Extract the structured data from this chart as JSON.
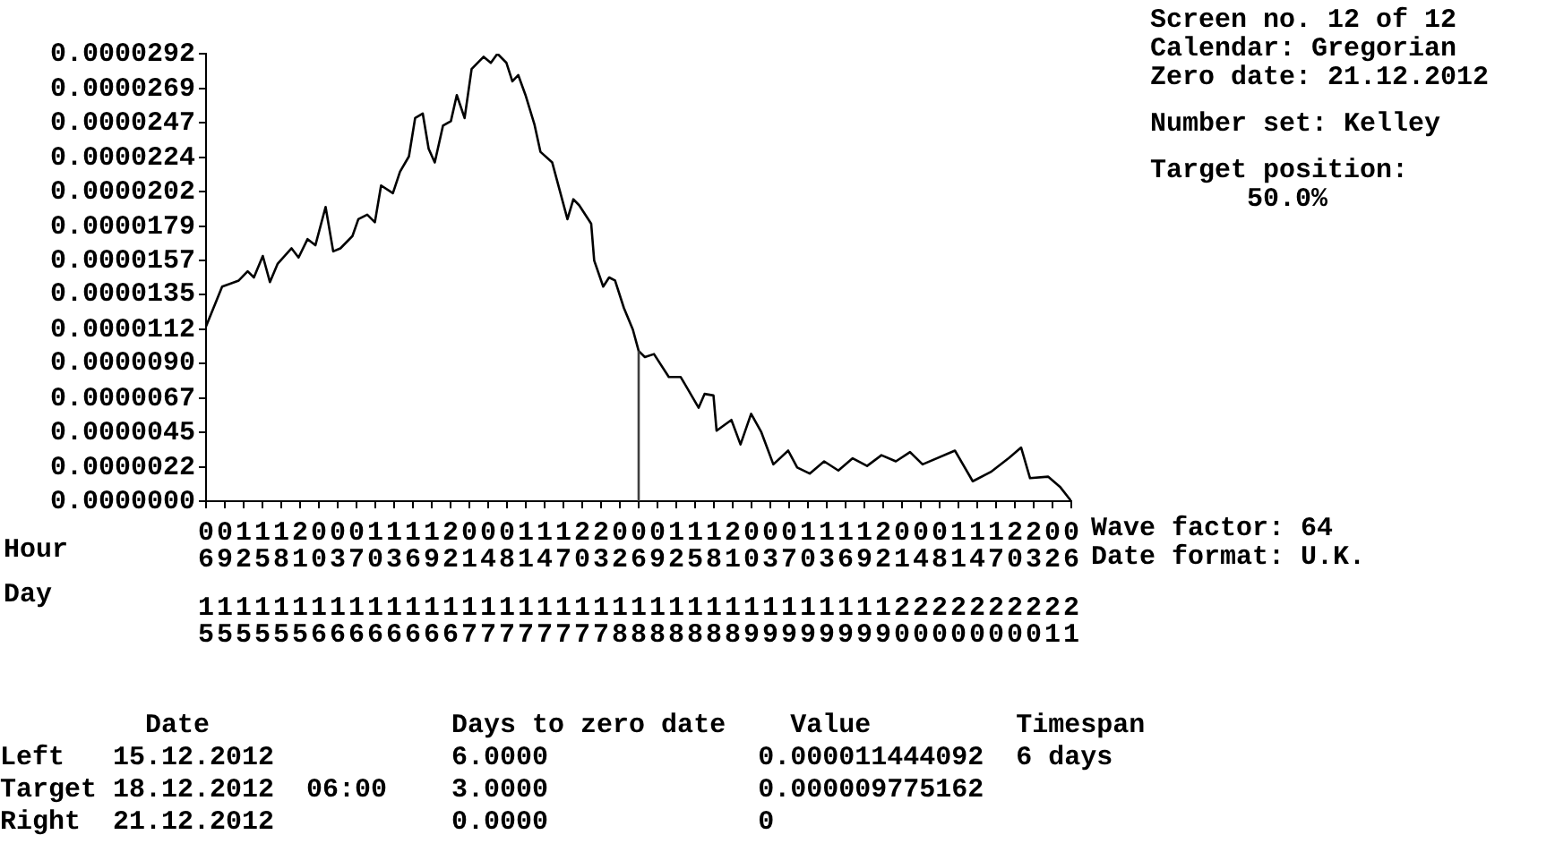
{
  "chart_data": {
    "type": "line",
    "color": "#000000",
    "marker": "none",
    "legend": false,
    "x": [
      "2012-12-15T06:00",
      "2012-12-15T08:41",
      "2012-12-15T11:27",
      "2012-12-15T12:56",
      "2012-12-15T13:58",
      "2012-12-15T15:27",
      "2012-12-15T16:38",
      "2012-12-15T17:56",
      "2012-12-15T20:14",
      "2012-12-15T21:24",
      "2012-12-15T22:54",
      "2012-12-16T00:12",
      "2012-12-16T01:54",
      "2012-12-16T03:10",
      "2012-12-16T04:22",
      "2012-12-16T06:22",
      "2012-12-16T07:21",
      "2012-12-16T08:50",
      "2012-12-16T10:06",
      "2012-12-16T11:08",
      "2012-12-16T13:06",
      "2012-12-16T14:17",
      "2012-12-16T15:46",
      "2012-12-16T16:48",
      "2012-12-16T18:04",
      "2012-12-16T19:03",
      "2012-12-16T20:04",
      "2012-12-16T21:26",
      "2012-12-16T22:45",
      "2012-12-16T23:44",
      "2012-12-17T01:02",
      "2012-12-17T02:12",
      "2012-12-17T04:12",
      "2012-12-17T05:24",
      "2012-12-17T06:30",
      "2012-12-17T08:00",
      "2012-12-17T08:59",
      "2012-12-17T09:58",
      "2012-12-17T11:10",
      "2012-12-17T12:39",
      "2012-12-17T13:39",
      "2012-12-17T15:37",
      "2012-12-17T18:09",
      "2012-12-17T19:08",
      "2012-12-17T20:07",
      "2012-12-17T22:06",
      "2012-12-17T22:36",
      "2012-12-18T00:06",
      "2012-12-18T01:05",
      "2012-12-18T02:04",
      "2012-12-18T03:33",
      "2012-12-18T05:02",
      "2012-12-18T06:00",
      "2012-12-18T07:02",
      "2012-12-18T08:33",
      "2012-12-18T11:01",
      "2012-12-18T13:00",
      "2012-12-18T15:59",
      "2012-12-18T16:58",
      "2012-12-18T18:27",
      "2012-12-18T18:58",
      "2012-12-18T21:26",
      "2012-12-18T22:57",
      "2012-12-19T00:43",
      "2012-12-19T02:25",
      "2012-12-19T04:25",
      "2012-12-19T06:53",
      "2012-12-19T08:23",
      "2012-12-19T10:28",
      "2012-12-19T12:52",
      "2012-12-19T15:14",
      "2012-12-19T17:37",
      "2012-12-19T20:01",
      "2012-12-19T22:24",
      "2012-12-20T00:48",
      "2012-12-20T03:10",
      "2012-12-20T05:15",
      "2012-12-20T10:38",
      "2012-12-20T13:36",
      "2012-12-20T16:35",
      "2012-12-20T19:34",
      "2012-12-20T21:39",
      "2012-12-20T23:08",
      "2012-12-21T02:08",
      "2012-12-21T04:12",
      "2012-12-21T06:00"
    ],
    "values": [
      1.14e-05,
      1.4e-05,
      1.44e-05,
      1.5e-05,
      1.46e-05,
      1.6e-05,
      1.43e-05,
      1.55e-05,
      1.65e-05,
      1.59e-05,
      1.71e-05,
      1.67e-05,
      1.92e-05,
      1.63e-05,
      1.65e-05,
      1.73e-05,
      1.84e-05,
      1.87e-05,
      1.82e-05,
      2.06e-05,
      2.01e-05,
      2.15e-05,
      2.25e-05,
      2.5e-05,
      2.53e-05,
      2.3e-05,
      2.21e-05,
      2.45e-05,
      2.48e-05,
      2.65e-05,
      2.5e-05,
      2.82e-05,
      2.9e-05,
      2.86e-05,
      2.92e-05,
      2.86e-05,
      2.74e-05,
      2.78e-05,
      2.65e-05,
      2.46e-05,
      2.28e-05,
      2.21e-05,
      1.84e-05,
      1.97e-05,
      1.93e-05,
      1.81e-05,
      1.57e-05,
      1.4e-05,
      1.46e-05,
      1.44e-05,
      1.26e-05,
      1.12e-05,
      9.8e-06,
      9.4e-06,
      9.6e-06,
      8.1e-06,
      8.1e-06,
      6.1e-06,
      7e-06,
      6.9e-06,
      4.6e-06,
      5.3e-06,
      3.7e-06,
      5.7e-06,
      4.5e-06,
      2.4e-06,
      3.3e-06,
      2.2e-06,
      1.8e-06,
      2.6e-06,
      2e-06,
      2.8e-06,
      2.3e-06,
      3e-06,
      2.6e-06,
      3.2e-06,
      2.4e-06,
      3.3e-06,
      1.3e-06,
      1.9e-06,
      2.8e-06,
      3.5e-06,
      1.5e-06,
      1.6e-06,
      9e-07,
      0
    ],
    "xlim": [
      "2012-12-15T06:00",
      "2012-12-21T06:00"
    ],
    "xlabel": "Hour",
    "xticks": [
      {
        "value": "2012-12-15T06:00",
        "label": "06"
      },
      {
        "value": "2012-12-15T09:08",
        "label": "09"
      },
      {
        "value": "2012-12-15T12:16",
        "label": "12"
      },
      {
        "value": "2012-12-15T15:24",
        "label": "15"
      },
      {
        "value": "2012-12-15T18:31",
        "label": "18"
      },
      {
        "value": "2012-12-15T21:39",
        "label": "21"
      },
      {
        "value": "2012-12-16T00:47",
        "label": "00"
      },
      {
        "value": "2012-12-16T03:55",
        "label": "03"
      },
      {
        "value": "2012-12-16T07:03",
        "label": "07"
      },
      {
        "value": "2012-12-16T10:10",
        "label": "10"
      },
      {
        "value": "2012-12-16T13:18",
        "label": "13"
      },
      {
        "value": "2012-12-16T16:26",
        "label": "16"
      },
      {
        "value": "2012-12-16T19:34",
        "label": "19"
      },
      {
        "value": "2012-12-16T22:42",
        "label": "22"
      },
      {
        "value": "2012-12-17T01:50",
        "label": "01"
      },
      {
        "value": "2012-12-17T04:57",
        "label": "04"
      },
      {
        "value": "2012-12-17T08:05",
        "label": "08"
      },
      {
        "value": "2012-12-17T11:13",
        "label": "11"
      },
      {
        "value": "2012-12-17T14:21",
        "label": "14"
      },
      {
        "value": "2012-12-17T17:29",
        "label": "17"
      },
      {
        "value": "2012-12-17T20:37",
        "label": "20"
      },
      {
        "value": "2012-12-17T23:44",
        "label": "23"
      },
      {
        "value": "2012-12-18T02:52",
        "label": "02"
      },
      {
        "value": "2012-12-18T06:00",
        "label": "06"
      },
      {
        "value": "2012-12-18T09:08",
        "label": "09"
      },
      {
        "value": "2012-12-18T12:16",
        "label": "12"
      },
      {
        "value": "2012-12-18T15:24",
        "label": "15"
      },
      {
        "value": "2012-12-18T18:31",
        "label": "18"
      },
      {
        "value": "2012-12-18T21:39",
        "label": "21"
      },
      {
        "value": "2012-12-19T00:47",
        "label": "00"
      },
      {
        "value": "2012-12-19T03:55",
        "label": "03"
      },
      {
        "value": "2012-12-19T07:03",
        "label": "07"
      },
      {
        "value": "2012-12-19T10:10",
        "label": "10"
      },
      {
        "value": "2012-12-19T13:18",
        "label": "13"
      },
      {
        "value": "2012-12-19T16:26",
        "label": "16"
      },
      {
        "value": "2012-12-19T19:34",
        "label": "19"
      },
      {
        "value": "2012-12-19T22:42",
        "label": "22"
      },
      {
        "value": "2012-12-20T01:50",
        "label": "01"
      },
      {
        "value": "2012-12-20T04:57",
        "label": "04"
      },
      {
        "value": "2012-12-20T08:05",
        "label": "08"
      },
      {
        "value": "2012-12-20T11:13",
        "label": "11"
      },
      {
        "value": "2012-12-20T14:21",
        "label": "14"
      },
      {
        "value": "2012-12-20T17:29",
        "label": "17"
      },
      {
        "value": "2012-12-20T20:37",
        "label": "20"
      },
      {
        "value": "2012-12-20T23:44",
        "label": "23"
      },
      {
        "value": "2012-12-21T02:52",
        "label": "02"
      },
      {
        "value": "2012-12-21T06:00",
        "label": "06"
      }
    ],
    "x2lim": [
      "2012-12-15T06:00",
      "2012-12-21T06:00"
    ],
    "x2label": "Day",
    "x2ticks": [
      {
        "value": "2012-12-15T06:00",
        "label": "15"
      },
      {
        "value": "2012-12-15T09:08",
        "label": "15"
      },
      {
        "value": "2012-12-15T12:16",
        "label": "15"
      },
      {
        "value": "2012-12-15T15:24",
        "label": "15"
      },
      {
        "value": "2012-12-15T18:31",
        "label": "15"
      },
      {
        "value": "2012-12-15T21:39",
        "label": "15"
      },
      {
        "value": "2012-12-16T00:47",
        "label": "16"
      },
      {
        "value": "2012-12-16T03:55",
        "label": "16"
      },
      {
        "value": "2012-12-16T07:03",
        "label": "16"
      },
      {
        "value": "2012-12-16T10:10",
        "label": "16"
      },
      {
        "value": "2012-12-16T13:18",
        "label": "16"
      },
      {
        "value": "2012-12-16T16:26",
        "label": "16"
      },
      {
        "value": "2012-12-16T19:34",
        "label": "16"
      },
      {
        "value": "2012-12-16T22:42",
        "label": "16"
      },
      {
        "value": "2012-12-17T01:50",
        "label": "17"
      },
      {
        "value": "2012-12-17T04:57",
        "label": "17"
      },
      {
        "value": "2012-12-17T08:05",
        "label": "17"
      },
      {
        "value": "2012-12-17T11:13",
        "label": "17"
      },
      {
        "value": "2012-12-17T14:21",
        "label": "17"
      },
      {
        "value": "2012-12-17T17:29",
        "label": "17"
      },
      {
        "value": "2012-12-17T20:37",
        "label": "17"
      },
      {
        "value": "2012-12-17T23:44",
        "label": "17"
      },
      {
        "value": "2012-12-18T02:52",
        "label": "18"
      },
      {
        "value": "2012-12-18T06:00",
        "label": "18"
      },
      {
        "value": "2012-12-18T09:08",
        "label": "18"
      },
      {
        "value": "2012-12-18T12:16",
        "label": "18"
      },
      {
        "value": "2012-12-18T15:24",
        "label": "18"
      },
      {
        "value": "2012-12-18T18:31",
        "label": "18"
      },
      {
        "value": "2012-12-18T21:39",
        "label": "18"
      },
      {
        "value": "2012-12-19T00:47",
        "label": "19"
      },
      {
        "value": "2012-12-19T03:55",
        "label": "19"
      },
      {
        "value": "2012-12-19T07:03",
        "label": "19"
      },
      {
        "value": "2012-12-19T10:10",
        "label": "19"
      },
      {
        "value": "2012-12-19T13:18",
        "label": "19"
      },
      {
        "value": "2012-12-19T16:26",
        "label": "19"
      },
      {
        "value": "2012-12-19T19:34",
        "label": "19"
      },
      {
        "value": "2012-12-19T22:42",
        "label": "19"
      },
      {
        "value": "2012-12-20T01:50",
        "label": "20"
      },
      {
        "value": "2012-12-20T04:57",
        "label": "20"
      },
      {
        "value": "2012-12-20T08:05",
        "label": "20"
      },
      {
        "value": "2012-12-20T11:13",
        "label": "20"
      },
      {
        "value": "2012-12-20T14:21",
        "label": "20"
      },
      {
        "value": "2012-12-20T17:29",
        "label": "20"
      },
      {
        "value": "2012-12-20T20:37",
        "label": "20"
      },
      {
        "value": "2012-12-20T23:44",
        "label": "20"
      },
      {
        "value": "2012-12-21T02:52",
        "label": "21"
      },
      {
        "value": "2012-12-21T06:00",
        "label": "21"
      }
    ],
    "ylim": [
      0,
      2.92e-05
    ],
    "yticks": [
      {
        "value": 0,
        "label": "0.0000000"
      },
      {
        "value": 2.2e-06,
        "label": "0.0000022"
      },
      {
        "value": 4.5e-06,
        "label": "0.0000045"
      },
      {
        "value": 6.7e-06,
        "label": "0.0000067"
      },
      {
        "value": 9e-06,
        "label": "0.0000090"
      },
      {
        "value": 1.12e-05,
        "label": "0.0000112"
      },
      {
        "value": 1.35e-05,
        "label": "0.0000135"
      },
      {
        "value": 1.57e-05,
        "label": "0.0000157"
      },
      {
        "value": 1.79e-05,
        "label": "0.0000179"
      },
      {
        "value": 2.02e-05,
        "label": "0.0000202"
      },
      {
        "value": 2.24e-05,
        "label": "0.0000224"
      },
      {
        "value": 2.47e-05,
        "label": "0.0000247"
      },
      {
        "value": 2.69e-05,
        "label": "0.0000269"
      },
      {
        "value": 2.92e-05,
        "label": "0.0000292"
      }
    ],
    "ref_lines": [
      {
        "axis": "x",
        "value": "2012-12-18T06:00",
        "color": "#404040"
      }
    ],
    "annotations": [
      "Screen no. 12 of 12",
      "Calendar: Gregorian",
      "Zero date: 21.12.2012",
      "Number set: Kelley",
      "Target position:",
      "50.0%",
      "Wave factor: 64",
      "Date format: U.K.",
      "         Date               Days to zero date    Value         Timespan",
      "Left   15.12.2012           6.0000             0.000011444092  6 days",
      "Target 18.12.2012  06:00    3.0000             0.000009775162",
      "Right  21.12.2012           0.0000             0"
    ]
  }
}
